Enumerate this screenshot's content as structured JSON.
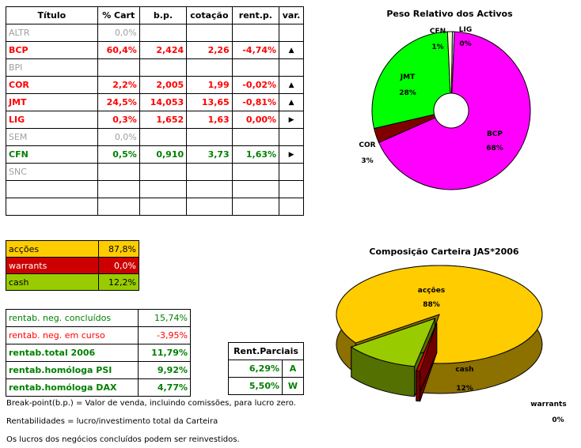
{
  "main_table": {
    "headers": [
      "Título",
      "% Cart",
      "b.p.",
      "cotação",
      "rent.p.",
      "var."
    ],
    "rows": [
      {
        "titulo": "ALTR",
        "cart": "0,0%",
        "bp": "",
        "cot": "",
        "rent": "",
        "var": "",
        "style": "grey"
      },
      {
        "titulo": "BCP",
        "cart": "60,4%",
        "bp": "2,424",
        "cot": "2,26",
        "rent": "-4,74%",
        "var": "▲",
        "style": "red"
      },
      {
        "titulo": "BPI",
        "cart": "",
        "bp": "",
        "cot": "",
        "rent": "",
        "var": "",
        "style": "grey"
      },
      {
        "titulo": "COR",
        "cart": "2,2%",
        "bp": "2,005",
        "cot": "1,99",
        "rent": "-0,02%",
        "var": "▲",
        "style": "red"
      },
      {
        "titulo": "JMT",
        "cart": "24,5%",
        "bp": "14,053",
        "cot": "13,65",
        "rent": "-0,81%",
        "var": "▲",
        "style": "red"
      },
      {
        "titulo": "LIG",
        "cart": "0,3%",
        "bp": "1,652",
        "cot": "1,63",
        "rent": "0,00%",
        "var": "▶",
        "style": "red"
      },
      {
        "titulo": "SEM",
        "cart": "0,0%",
        "bp": "",
        "cot": "",
        "rent": "",
        "var": "",
        "style": "grey"
      },
      {
        "titulo": "CFN",
        "cart": "0,5%",
        "bp": "0,910",
        "cot": "3,73",
        "rent": "1,63%",
        "var": "▶",
        "style": "green"
      },
      {
        "titulo": "SNC",
        "cart": "",
        "bp": "",
        "cot": "",
        "rent": "",
        "var": "",
        "style": "grey"
      },
      {
        "titulo": "",
        "cart": "",
        "bp": "",
        "cot": "",
        "rent": "",
        "var": "",
        "style": "grey"
      },
      {
        "titulo": "",
        "cart": "",
        "bp": "",
        "cot": "",
        "rent": "",
        "var": "",
        "style": "grey"
      }
    ]
  },
  "allocation": [
    {
      "label": "acções",
      "value": "87,8%",
      "bg": "#ffcc00",
      "color": "#000000"
    },
    {
      "label": "warrants",
      "value": "0,0%",
      "bg": "#cc0000",
      "color": "#ffffff"
    },
    {
      "label": "cash",
      "value": "12,2%",
      "bg": "#99cc00",
      "color": "#000000"
    }
  ],
  "rentab": [
    {
      "label": "rentab. neg. concluídos",
      "value": "15,74%",
      "color": "#008000",
      "bold": false
    },
    {
      "label": "rentab. neg. em curso",
      "value": "-3,95%",
      "color": "#ff0000",
      "bold": false
    },
    {
      "label": "rentab.total 2006",
      "value": "11,79%",
      "color": "#008000",
      "bold": true
    },
    {
      "label": "rentab.homóloga PSI",
      "value": "9,92%",
      "color": "#008000",
      "bold": true
    },
    {
      "label": "rentab.homóloga DAX",
      "value": "4,77%",
      "color": "#008000",
      "bold": true
    }
  ],
  "parciais": {
    "header": "Rent.Parciais",
    "rows": [
      {
        "value": "6,29%",
        "code": "A"
      },
      {
        "value": "5,50%",
        "code": "W"
      }
    ]
  },
  "notes": [
    "Break-point(b.p.) = Valor de venda, incluindo comissões, para lucro zero.",
    "Rentabilidades = lucro/investimento total da Carteira",
    "Os lucros dos negócios concluídos podem ser reinvestidos."
  ],
  "chart_data": [
    {
      "type": "pie",
      "title": "Peso Relativo dos Activos",
      "slices": [
        {
          "label": "BCP",
          "pct_label": "68%",
          "value": 68,
          "color": "#ff00ff"
        },
        {
          "label": "COR",
          "pct_label": "3%",
          "value": 3,
          "color": "#800000"
        },
        {
          "label": "JMT",
          "pct_label": "28%",
          "value": 28,
          "color": "#00ff00"
        },
        {
          "label": "CFN",
          "pct_label": "1%",
          "value": 1,
          "color": "#ffffcc"
        },
        {
          "label": "LIG",
          "pct_label": "0%",
          "value": 0,
          "color": "#ccffff"
        }
      ]
    },
    {
      "type": "pie",
      "title": "Composição Carteira JAS*2006",
      "slices": [
        {
          "label": "acções",
          "pct_label": "88%",
          "value": 88,
          "color": "#ffcc00"
        },
        {
          "label": "cash",
          "pct_label": "12%",
          "value": 12,
          "color": "#99cc00"
        },
        {
          "label": "warrants",
          "pct_label": "0%",
          "value": 0,
          "color": "#cc0000"
        }
      ]
    }
  ]
}
